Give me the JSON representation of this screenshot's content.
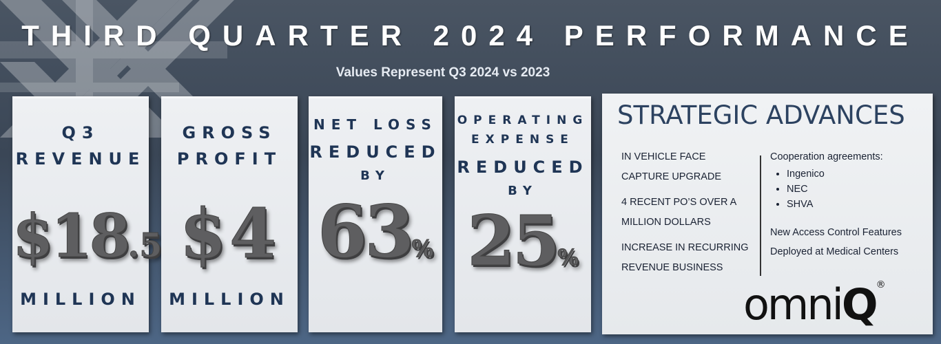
{
  "title": "THIRD QUARTER 2024 PERFORMANCE",
  "subtitle": "Values Represent Q3 2024 vs 2023",
  "cards": [
    {
      "top_line1": "Q3",
      "top_line2": "REVENUE",
      "value_main": "$18",
      "value_small": ".5",
      "bottom": "MILLION"
    },
    {
      "top_line1": "GROSS",
      "top_line2": "PROFIT",
      "value_main": "$4",
      "bottom": "MILLION"
    },
    {
      "top_line1": "NET LOSS",
      "top_line2": "REDUCED",
      "top_line3": "BY",
      "value_main": "63",
      "value_small": "%"
    },
    {
      "top_line1": "OPERATING",
      "top_line2": "EXPENSE",
      "top_line3": "REDUCED",
      "top_line4": "BY",
      "value_main": "25",
      "value_small": "%"
    }
  ],
  "strategic": {
    "title": "STRATEGIC ADVANCES",
    "left_items": [
      "IN VEHICLE FACE",
      "CAPTURE UPGRADE",
      "4 RECENT PO’S OVER A",
      "MILLION DOLLARS",
      "INCREASE IN RECURRING",
      "REVENUE BUSINESS"
    ],
    "cooperation_label": "Cooperation agreements:",
    "partners": [
      "Ingenico",
      "NEC",
      "SHVA"
    ],
    "access_line1": "New Access Control Features",
    "access_line2": "Deployed at Medical Centers"
  },
  "logo": {
    "text": "omni",
    "q": "Q",
    "reg": "®"
  },
  "colors": {
    "label": "#1f3555",
    "heading": "#2c4260",
    "number": "#5e5e60"
  }
}
